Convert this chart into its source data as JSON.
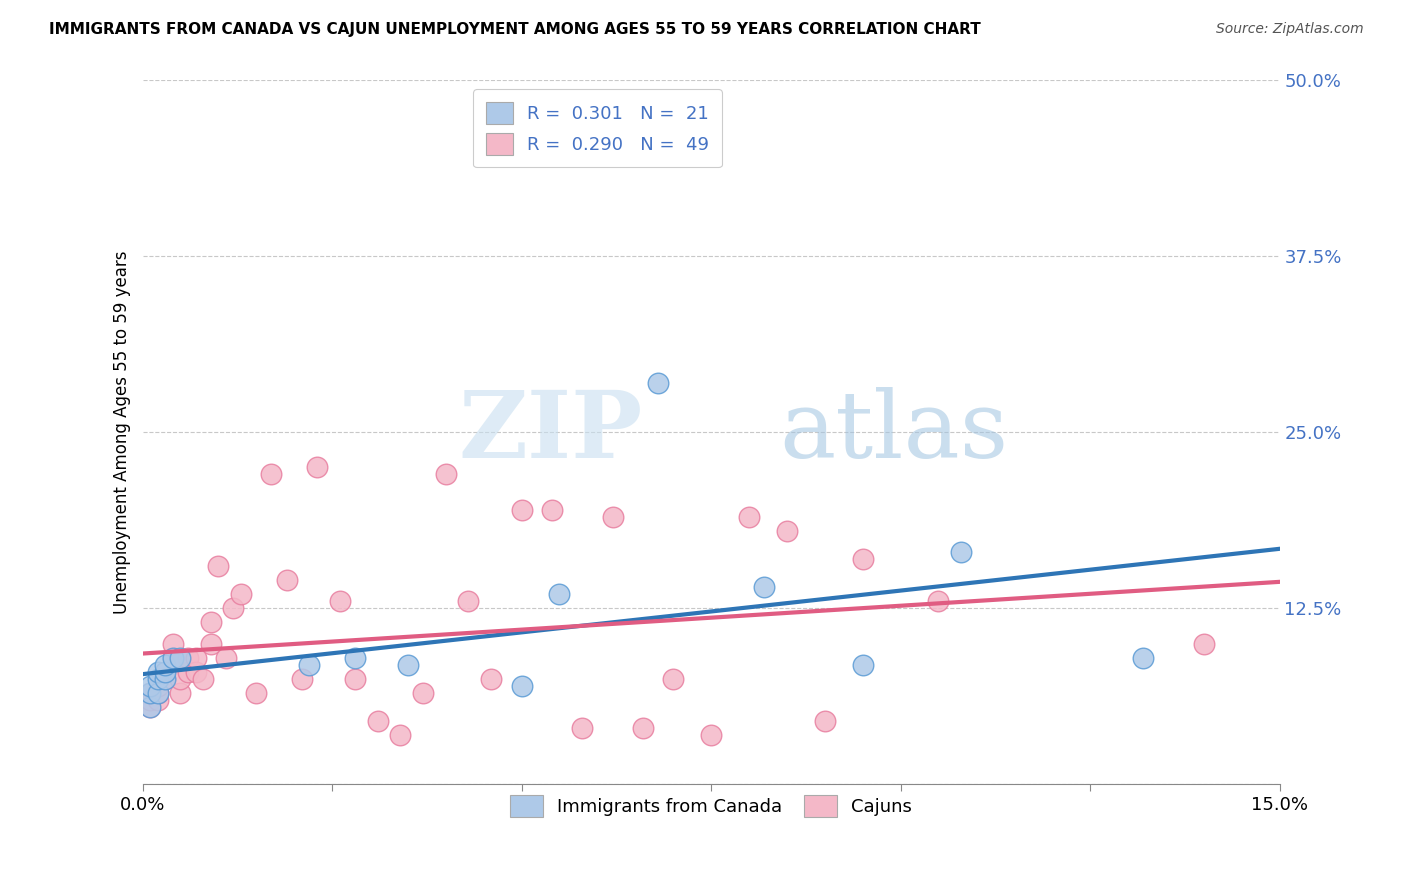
{
  "title": "IMMIGRANTS FROM CANADA VS CAJUN UNEMPLOYMENT AMONG AGES 55 TO 59 YEARS CORRELATION CHART",
  "source": "Source: ZipAtlas.com",
  "ylabel": "Unemployment Among Ages 55 to 59 years",
  "xlim": [
    0.0,
    0.15
  ],
  "ylim": [
    0.0,
    0.5
  ],
  "xticks": [
    0.0,
    0.025,
    0.05,
    0.075,
    0.1,
    0.125,
    0.15
  ],
  "yticks": [
    0.0,
    0.125,
    0.25,
    0.375,
    0.5
  ],
  "yticklabels": [
    "",
    "12.5%",
    "25.0%",
    "37.5%",
    "50.0%"
  ],
  "watermark_zip": "ZIP",
  "watermark_atlas": "atlas",
  "blue_color": "#aec9e8",
  "blue_edge_color": "#5b9bd5",
  "pink_color": "#f4b8c8",
  "pink_edge_color": "#e87fa0",
  "blue_line_color": "#2e75b6",
  "pink_line_color": "#e05c82",
  "series1_x": [
    0.001,
    0.001,
    0.001,
    0.002,
    0.002,
    0.002,
    0.003,
    0.003,
    0.003,
    0.004,
    0.005,
    0.022,
    0.028,
    0.035,
    0.05,
    0.055,
    0.068,
    0.082,
    0.095,
    0.108,
    0.132
  ],
  "series1_y": [
    0.055,
    0.065,
    0.07,
    0.065,
    0.075,
    0.08,
    0.075,
    0.08,
    0.085,
    0.09,
    0.09,
    0.085,
    0.09,
    0.085,
    0.07,
    0.135,
    0.285,
    0.14,
    0.085,
    0.165,
    0.09
  ],
  "series2_x": [
    0.001,
    0.001,
    0.001,
    0.002,
    0.002,
    0.002,
    0.003,
    0.003,
    0.004,
    0.004,
    0.005,
    0.005,
    0.006,
    0.006,
    0.007,
    0.007,
    0.008,
    0.009,
    0.009,
    0.01,
    0.011,
    0.012,
    0.013,
    0.015,
    0.017,
    0.019,
    0.021,
    0.023,
    0.026,
    0.028,
    0.031,
    0.034,
    0.037,
    0.04,
    0.043,
    0.046,
    0.05,
    0.054,
    0.058,
    0.062,
    0.066,
    0.07,
    0.075,
    0.08,
    0.085,
    0.09,
    0.095,
    0.105,
    0.14
  ],
  "series2_y": [
    0.055,
    0.06,
    0.065,
    0.06,
    0.065,
    0.07,
    0.075,
    0.08,
    0.09,
    0.1,
    0.065,
    0.075,
    0.08,
    0.09,
    0.08,
    0.09,
    0.075,
    0.1,
    0.115,
    0.155,
    0.09,
    0.125,
    0.135,
    0.065,
    0.22,
    0.145,
    0.075,
    0.225,
    0.13,
    0.075,
    0.045,
    0.035,
    0.065,
    0.22,
    0.13,
    0.075,
    0.195,
    0.195,
    0.04,
    0.19,
    0.04,
    0.075,
    0.035,
    0.19,
    0.18,
    0.045,
    0.16,
    0.13,
    0.1
  ]
}
